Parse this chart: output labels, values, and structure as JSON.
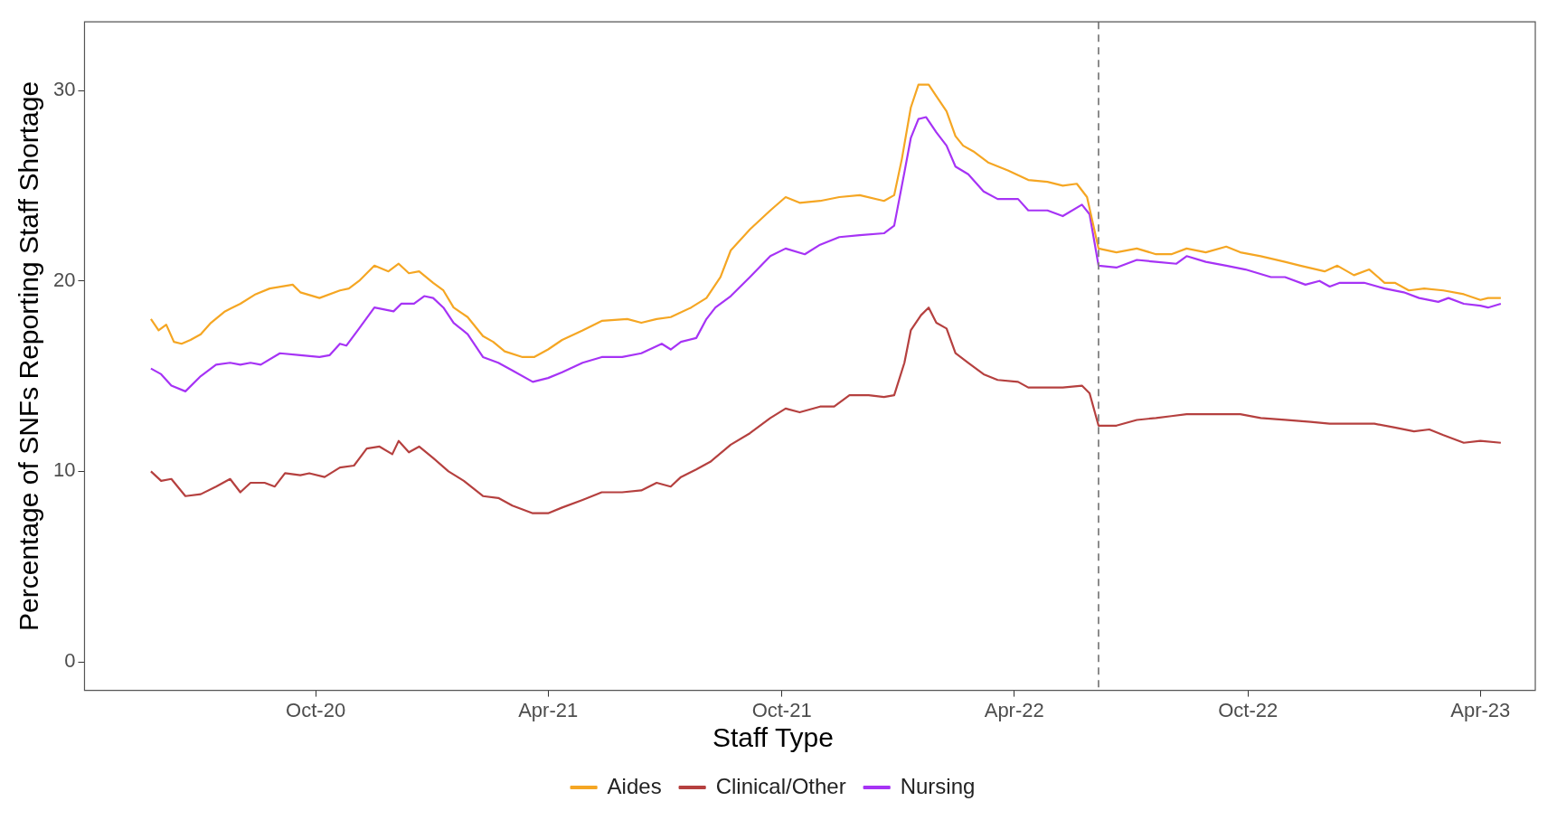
{
  "chart_data": {
    "type": "line",
    "xlabel": null,
    "ylabel": "Percentage of SNFs Reporting Staff Shortage",
    "legend_title": "Staff Type",
    "legend": "bottom",
    "grid": false,
    "marker": "none",
    "line_style": "solid",
    "xlim": [
      "2020-04-03",
      "2023-05-14"
    ],
    "xticks": [
      {
        "value": "2020-10-01",
        "label": "Oct-20"
      },
      {
        "value": "2021-04-01",
        "label": "Apr-21"
      },
      {
        "value": "2021-10-01",
        "label": "Oct-21"
      },
      {
        "value": "2022-04-01",
        "label": "Apr-22"
      },
      {
        "value": "2022-10-01",
        "label": "Oct-22"
      },
      {
        "value": "2023-04-01",
        "label": "Apr-23"
      }
    ],
    "ylim": [
      -1.5,
      33.6
    ],
    "yticks": [
      0,
      10,
      20,
      30
    ],
    "ref_lines": [
      {
        "axis": "x",
        "value": "2022-06-06",
        "color": "#808080",
        "line_style": "dashed"
      }
    ],
    "series": [
      {
        "name": "Aides",
        "color": "#f5a623",
        "x": [
          "2020-05-25",
          "2020-05-31",
          "2020-06-06",
          "2020-06-12",
          "2020-06-18",
          "2020-06-25",
          "2020-07-03",
          "2020-07-11",
          "2020-07-22",
          "2020-08-03",
          "2020-08-15",
          "2020-08-26",
          "2020-09-13",
          "2020-09-19",
          "2020-10-04",
          "2020-10-20",
          "2020-10-27",
          "2020-11-04",
          "2020-11-16",
          "2020-11-27",
          "2020-12-05",
          "2020-12-13",
          "2020-12-21",
          "2021-01-01",
          "2021-01-09",
          "2021-01-17",
          "2021-01-28",
          "2021-02-09",
          "2021-02-17",
          "2021-02-26",
          "2021-03-12",
          "2021-03-21",
          "2021-04-01",
          "2021-04-12",
          "2021-04-28",
          "2021-05-13",
          "2021-06-02",
          "2021-06-13",
          "2021-06-25",
          "2021-07-06",
          "2021-07-22",
          "2021-08-03",
          "2021-08-14",
          "2021-08-22",
          "2021-09-06",
          "2021-09-22",
          "2021-10-04",
          "2021-10-15",
          "2021-10-31",
          "2021-11-15",
          "2021-12-01",
          "2021-12-20",
          "2021-12-28",
          "2022-01-03",
          "2022-01-10",
          "2022-01-16",
          "2022-01-24",
          "2022-01-30",
          "2022-02-07",
          "2022-02-14",
          "2022-02-20",
          "2022-02-28",
          "2022-03-12",
          "2022-03-27",
          "2022-04-12",
          "2022-04-27",
          "2022-05-09",
          "2022-05-20",
          "2022-05-28",
          "2022-06-06",
          "2022-06-20",
          "2022-07-06",
          "2022-07-21",
          "2022-08-02",
          "2022-08-14",
          "2022-08-29",
          "2022-09-14",
          "2022-09-25",
          "2022-10-11",
          "2022-10-30",
          "2022-11-11",
          "2022-11-30",
          "2022-12-10",
          "2022-12-23",
          "2023-01-04",
          "2023-01-16",
          "2023-01-24",
          "2023-02-04",
          "2023-02-16",
          "2023-03-03",
          "2023-03-19",
          "2023-04-01",
          "2023-04-07",
          "2023-04-17"
        ],
        "values": [
          18.0,
          17.4,
          17.7,
          16.8,
          16.7,
          16.9,
          17.2,
          17.8,
          18.4,
          18.8,
          19.3,
          19.6,
          19.8,
          19.4,
          19.1,
          19.5,
          19.6,
          20.0,
          20.8,
          20.5,
          20.9,
          20.4,
          20.5,
          19.9,
          19.5,
          18.6,
          18.1,
          17.1,
          16.8,
          16.3,
          16.0,
          16.0,
          16.4,
          16.9,
          17.4,
          17.9,
          18.0,
          17.8,
          18.0,
          18.1,
          18.6,
          19.1,
          20.2,
          21.6,
          22.7,
          23.7,
          24.4,
          24.1,
          24.2,
          24.4,
          24.5,
          24.2,
          24.5,
          26.4,
          29.1,
          30.3,
          30.3,
          29.7,
          28.9,
          27.6,
          27.1,
          26.8,
          26.2,
          25.8,
          25.3,
          25.2,
          25.0,
          25.1,
          24.4,
          21.7,
          21.5,
          21.7,
          21.4,
          21.4,
          21.7,
          21.5,
          21.8,
          21.5,
          21.3,
          21.0,
          20.8,
          20.5,
          20.8,
          20.3,
          20.6,
          19.9,
          19.9,
          19.5,
          19.6,
          19.5,
          19.3,
          19.0,
          19.1,
          19.1
        ]
      },
      {
        "name": "Clinical/Other",
        "color": "#b5403f",
        "x": [
          "2020-05-25",
          "2020-06-02",
          "2020-06-10",
          "2020-06-21",
          "2020-07-03",
          "2020-07-15",
          "2020-07-26",
          "2020-08-03",
          "2020-08-11",
          "2020-08-22",
          "2020-08-30",
          "2020-09-07",
          "2020-09-19",
          "2020-09-26",
          "2020-10-08",
          "2020-10-20",
          "2020-10-31",
          "2020-11-10",
          "2020-11-20",
          "2020-11-30",
          "2020-12-05",
          "2020-12-13",
          "2020-12-21",
          "2021-01-01",
          "2021-01-13",
          "2021-01-25",
          "2021-02-09",
          "2021-02-21",
          "2021-03-04",
          "2021-03-20",
          "2021-04-01",
          "2021-04-12",
          "2021-04-28",
          "2021-05-13",
          "2021-05-29",
          "2021-06-13",
          "2021-06-25",
          "2021-07-06",
          "2021-07-14",
          "2021-07-26",
          "2021-08-06",
          "2021-08-22",
          "2021-09-06",
          "2021-09-22",
          "2021-10-04",
          "2021-10-15",
          "2021-10-31",
          "2021-11-11",
          "2021-11-23",
          "2021-12-01",
          "2021-12-08",
          "2021-12-20",
          "2021-12-28",
          "2022-01-05",
          "2022-01-10",
          "2022-01-18",
          "2022-01-24",
          "2022-01-30",
          "2022-02-07",
          "2022-02-14",
          "2022-02-24",
          "2022-03-08",
          "2022-03-19",
          "2022-04-04",
          "2022-04-12",
          "2022-04-27",
          "2022-05-09",
          "2022-05-24",
          "2022-05-30",
          "2022-06-06",
          "2022-06-20",
          "2022-07-06",
          "2022-07-21",
          "2022-08-02",
          "2022-08-14",
          "2022-08-29",
          "2022-09-14",
          "2022-09-25",
          "2022-10-11",
          "2022-10-30",
          "2022-11-19",
          "2022-12-04",
          "2022-12-23",
          "2023-01-08",
          "2023-01-24",
          "2023-02-08",
          "2023-02-20",
          "2023-03-03",
          "2023-03-19",
          "2023-04-01",
          "2023-04-17"
        ],
        "values": [
          10.0,
          9.5,
          9.6,
          8.7,
          8.8,
          9.2,
          9.6,
          8.9,
          9.4,
          9.4,
          9.2,
          9.9,
          9.8,
          9.9,
          9.7,
          10.2,
          10.3,
          11.2,
          11.3,
          10.9,
          11.6,
          11.0,
          11.3,
          10.7,
          10.0,
          9.5,
          8.7,
          8.6,
          8.2,
          7.8,
          7.8,
          8.1,
          8.5,
          8.9,
          8.9,
          9.0,
          9.4,
          9.2,
          9.7,
          10.1,
          10.5,
          11.4,
          12.0,
          12.8,
          13.3,
          13.1,
          13.4,
          13.4,
          14.0,
          14.0,
          14.0,
          13.9,
          14.0,
          15.7,
          17.4,
          18.2,
          18.6,
          17.8,
          17.5,
          16.2,
          15.7,
          15.1,
          14.8,
          14.7,
          14.4,
          14.4,
          14.4,
          14.5,
          14.1,
          12.4,
          12.4,
          12.7,
          12.8,
          12.9,
          13.0,
          13.0,
          13.0,
          13.0,
          12.8,
          12.7,
          12.6,
          12.5,
          12.5,
          12.5,
          12.3,
          12.1,
          12.2,
          11.9,
          11.5,
          11.6,
          11.5
        ]
      },
      {
        "name": "Nursing",
        "color": "#a633f5",
        "x": [
          "2020-05-25",
          "2020-06-02",
          "2020-06-10",
          "2020-06-21",
          "2020-07-03",
          "2020-07-15",
          "2020-07-26",
          "2020-08-03",
          "2020-08-11",
          "2020-08-19",
          "2020-09-03",
          "2020-09-19",
          "2020-10-04",
          "2020-10-12",
          "2020-10-20",
          "2020-10-25",
          "2020-11-04",
          "2020-11-16",
          "2020-12-01",
          "2020-12-07",
          "2020-12-17",
          "2020-12-25",
          "2021-01-01",
          "2021-01-09",
          "2021-01-17",
          "2021-01-28",
          "2021-02-09",
          "2021-02-21",
          "2021-03-04",
          "2021-03-20",
          "2021-04-01",
          "2021-04-12",
          "2021-04-28",
          "2021-05-13",
          "2021-05-29",
          "2021-06-13",
          "2021-06-29",
          "2021-07-06",
          "2021-07-14",
          "2021-07-26",
          "2021-08-03",
          "2021-08-10",
          "2021-08-22",
          "2021-09-06",
          "2021-09-22",
          "2021-10-04",
          "2021-10-19",
          "2021-10-31",
          "2021-11-15",
          "2021-12-01",
          "2021-12-20",
          "2021-12-28",
          "2022-01-05",
          "2022-01-10",
          "2022-01-16",
          "2022-01-22",
          "2022-01-30",
          "2022-02-07",
          "2022-02-14",
          "2022-02-24",
          "2022-03-08",
          "2022-03-19",
          "2022-04-04",
          "2022-04-12",
          "2022-04-27",
          "2022-05-09",
          "2022-05-24",
          "2022-05-30",
          "2022-06-06",
          "2022-06-20",
          "2022-07-06",
          "2022-07-21",
          "2022-08-06",
          "2022-08-14",
          "2022-08-29",
          "2022-09-14",
          "2022-09-29",
          "2022-10-19",
          "2022-10-30",
          "2022-11-15",
          "2022-11-26",
          "2022-12-04",
          "2022-12-12",
          "2022-12-31",
          "2023-01-16",
          "2023-01-31",
          "2023-02-12",
          "2023-02-27",
          "2023-03-07",
          "2023-03-19",
          "2023-04-01",
          "2023-04-07",
          "2023-04-17"
        ],
        "values": [
          15.4,
          15.1,
          14.5,
          14.2,
          15.0,
          15.6,
          15.7,
          15.6,
          15.7,
          15.6,
          16.2,
          16.1,
          16.0,
          16.1,
          16.7,
          16.6,
          17.5,
          18.6,
          18.4,
          18.8,
          18.8,
          19.2,
          19.1,
          18.6,
          17.8,
          17.2,
          16.0,
          15.7,
          15.3,
          14.7,
          14.9,
          15.2,
          15.7,
          16.0,
          16.0,
          16.2,
          16.7,
          16.4,
          16.8,
          17.0,
          18.0,
          18.6,
          19.2,
          20.2,
          21.3,
          21.7,
          21.4,
          21.9,
          22.3,
          22.4,
          22.5,
          22.9,
          25.7,
          27.5,
          28.5,
          28.6,
          27.8,
          27.1,
          26.0,
          25.6,
          24.7,
          24.3,
          24.3,
          23.7,
          23.7,
          23.4,
          24.0,
          23.5,
          20.8,
          20.7,
          21.1,
          21.0,
          20.9,
          21.3,
          21.0,
          20.8,
          20.6,
          20.2,
          20.2,
          19.8,
          20.0,
          19.7,
          19.9,
          19.9,
          19.6,
          19.4,
          19.1,
          18.9,
          19.1,
          18.8,
          18.7,
          18.6,
          18.8
        ]
      }
    ]
  }
}
